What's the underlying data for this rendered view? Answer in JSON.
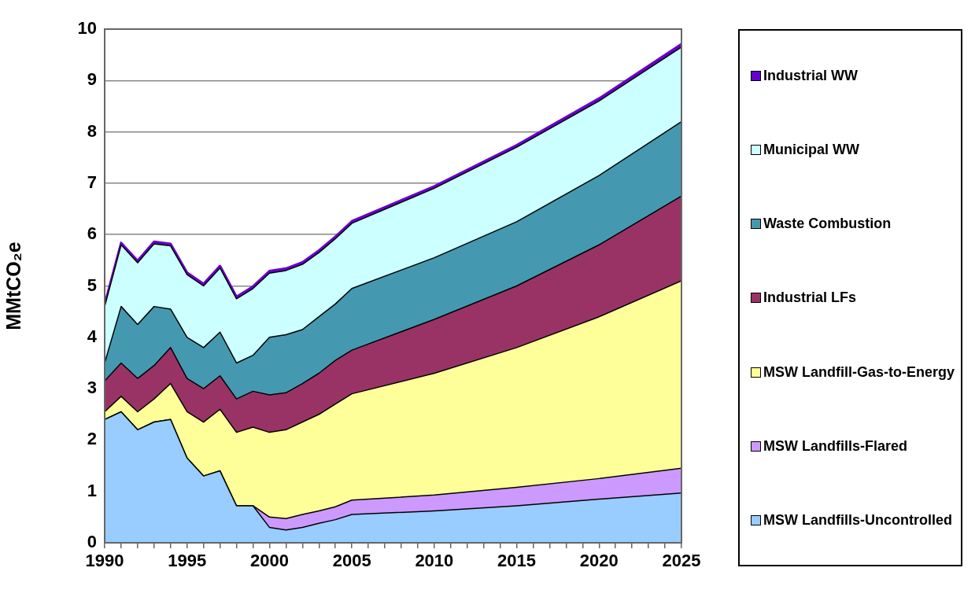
{
  "chart_data": {
    "type": "area",
    "stacked": true,
    "ylabel": "MMtCO₂e",
    "x": [
      1990,
      1991,
      1992,
      1993,
      1994,
      1995,
      1996,
      1997,
      1998,
      1999,
      2000,
      2001,
      2002,
      2003,
      2004,
      2005,
      2010,
      2015,
      2020,
      2025
    ],
    "xlim": [
      1990,
      2025
    ],
    "xticks": [
      1990,
      {
        "value": 1991,
        "label": null
      },
      {
        "value": 1992,
        "label": null
      },
      {
        "value": 1993,
        "label": null
      },
      {
        "value": 1994,
        "label": null
      },
      1995,
      {
        "value": 1996,
        "label": null
      },
      {
        "value": 1997,
        "label": null
      },
      {
        "value": 1998,
        "label": null
      },
      {
        "value": 1999,
        "label": null
      },
      2000,
      {
        "value": 2001,
        "label": null
      },
      {
        "value": 2002,
        "label": null
      },
      {
        "value": 2003,
        "label": null
      },
      {
        "value": 2004,
        "label": null
      },
      2005,
      {
        "value": 2006,
        "label": null
      },
      {
        "value": 2007,
        "label": null
      },
      {
        "value": 2008,
        "label": null
      },
      {
        "value": 2009,
        "label": null
      },
      2010,
      {
        "value": 2011,
        "label": null
      },
      {
        "value": 2012,
        "label": null
      },
      {
        "value": 2013,
        "label": null
      },
      {
        "value": 2014,
        "label": null
      },
      2015,
      {
        "value": 2016,
        "label": null
      },
      {
        "value": 2017,
        "label": null
      },
      {
        "value": 2018,
        "label": null
      },
      {
        "value": 2019,
        "label": null
      },
      2020,
      {
        "value": 2021,
        "label": null
      },
      {
        "value": 2022,
        "label": null
      },
      {
        "value": 2023,
        "label": null
      },
      {
        "value": 2024,
        "label": null
      },
      2025
    ],
    "ylim": [
      0,
      10
    ],
    "yticks": [
      0,
      1,
      2,
      3,
      4,
      5,
      6,
      7,
      8,
      9,
      10
    ],
    "grid": "y",
    "legend": "right",
    "series": [
      {
        "name": "MSW Landfills-Uncontrolled",
        "color": "#99ccff",
        "values": [
          2.4,
          2.55,
          2.2,
          2.35,
          2.4,
          1.65,
          1.3,
          1.4,
          0.72,
          0.72,
          0.3,
          0.25,
          0.3,
          0.38,
          0.45,
          0.55,
          0.62,
          0.72,
          0.85,
          0.97
        ]
      },
      {
        "name": "MSW Landfills-Flared",
        "color": "#cc99ff",
        "values": [
          0,
          0,
          0,
          0,
          0,
          0,
          0,
          0,
          0,
          0,
          0.2,
          0.22,
          0.25,
          0.24,
          0.25,
          0.28,
          0.31,
          0.36,
          0.4,
          0.48
        ]
      },
      {
        "name": "MSW Landfill-Gas-to-Energy",
        "color": "#ffff99",
        "values": [
          0.15,
          0.3,
          0.35,
          0.45,
          0.7,
          0.9,
          1.05,
          1.2,
          1.43,
          1.53,
          1.65,
          1.73,
          1.8,
          1.88,
          2.0,
          2.07,
          2.37,
          2.72,
          3.15,
          3.65
        ]
      },
      {
        "name": "Industrial LFs",
        "color": "#993366",
        "values": [
          0.6,
          0.65,
          0.65,
          0.65,
          0.7,
          0.65,
          0.65,
          0.65,
          0.65,
          0.7,
          0.73,
          0.72,
          0.75,
          0.8,
          0.85,
          0.85,
          1.05,
          1.2,
          1.4,
          1.65
        ]
      },
      {
        "name": "Waste Combustion",
        "color": "#4499b0",
        "values": [
          0.35,
          1.1,
          1.05,
          1.15,
          0.75,
          0.8,
          0.8,
          0.85,
          0.7,
          0.7,
          1.12,
          1.13,
          1.05,
          1.1,
          1.1,
          1.2,
          1.2,
          1.25,
          1.35,
          1.45
        ]
      },
      {
        "name": "Municipal WW",
        "color": "#ccffff",
        "values": [
          1.1,
          1.2,
          1.2,
          1.22,
          1.23,
          1.22,
          1.2,
          1.25,
          1.25,
          1.3,
          1.25,
          1.25,
          1.27,
          1.25,
          1.27,
          1.27,
          1.35,
          1.45,
          1.45,
          1.45
        ]
      },
      {
        "name": "Industrial WW",
        "color": "#6600cc",
        "values": [
          0.04,
          0.04,
          0.04,
          0.04,
          0.04,
          0.04,
          0.04,
          0.04,
          0.04,
          0.04,
          0.04,
          0.04,
          0.04,
          0.04,
          0.04,
          0.04,
          0.04,
          0.04,
          0.05,
          0.06
        ]
      }
    ]
  }
}
